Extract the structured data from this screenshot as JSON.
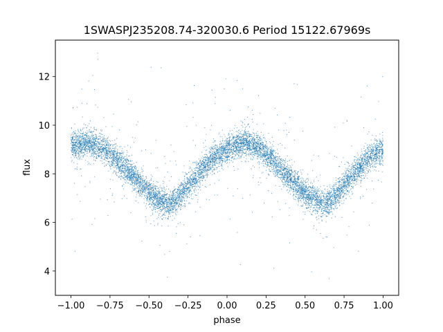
{
  "chart_data": {
    "type": "scatter",
    "title": "1SWASPJ235208.74-320030.6 Period 15122.67969s",
    "xlabel": "phase",
    "ylabel": "flux",
    "xlim": [
      -1.1,
      1.1
    ],
    "ylim": [
      3.0,
      13.5
    ],
    "x_ticks": [
      -1.0,
      -0.75,
      -0.5,
      -0.25,
      0.0,
      0.25,
      0.5,
      0.75,
      1.0
    ],
    "x_tick_labels": [
      "−1.00",
      "−0.75",
      "−0.50",
      "−0.25",
      "0.00",
      "0.25",
      "0.50",
      "0.75",
      "1.00"
    ],
    "y_ticks": [
      4,
      6,
      8,
      10,
      12
    ],
    "y_tick_labels": [
      "4",
      "6",
      "8",
      "10",
      "12"
    ],
    "grid": false,
    "legend": "none",
    "point_color": "#1f77b4",
    "series": [
      {
        "x": [
          -1.0,
          -0.9,
          -0.8,
          -0.7,
          -0.6,
          -0.5,
          -0.4,
          -0.375,
          -0.3,
          -0.2,
          -0.1,
          0.0,
          0.1,
          0.125,
          0.2,
          0.3,
          0.4,
          0.5,
          0.6,
          0.625,
          0.7,
          0.8,
          0.9,
          1.0
        ],
        "y": [
          9.1,
          9.3,
          9.1,
          8.5,
          7.9,
          7.2,
          6.8,
          6.7,
          7.1,
          7.9,
          8.6,
          9.0,
          9.3,
          9.3,
          9.1,
          8.5,
          7.8,
          7.2,
          6.8,
          6.7,
          7.1,
          7.9,
          8.6,
          9.0
        ]
      }
    ]
  }
}
